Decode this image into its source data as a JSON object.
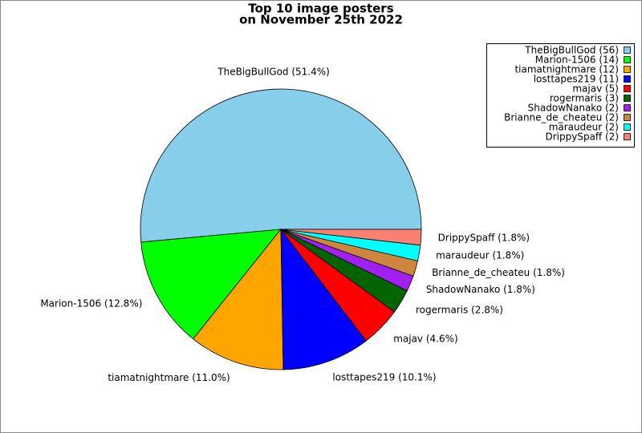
{
  "chart_data": {
    "type": "pie",
    "title": [
      "Top 10 image posters",
      "on November 25th 2022"
    ],
    "values": [
      51.4,
      12.8,
      11.0,
      10.1,
      4.6,
      2.8,
      1.8,
      1.8,
      1.8,
      1.8
    ],
    "value_labels": [
      "TheBigBullGod (51.4%)",
      "Marion-1506 (12.8%)",
      "tiamatnightmare (11.0%)",
      "losttapes219 (10.1%)",
      "majav (4.6%)",
      "rogermaris (2.8%)",
      "ShadowNanako (1.8%)",
      "Brianne_de_cheateu (1.8%)",
      "maraudeur (1.8%)",
      "DrippySpaff (1.8%)"
    ],
    "legend": [
      "TheBigBullGod (56)",
      "Marion-1506 (14)",
      "tiamatnightmare (12)",
      "losttapes219 (11)",
      "majav (5)",
      "rogermaris (3)",
      "ShadowNanako (2)",
      "Brianne_de_cheateu (2)",
      "maraudeur (2)",
      "DrippySpaff (2)"
    ],
    "colors": [
      "#87ceeb",
      "#00ff00",
      "#ffa500",
      "#0000ff",
      "#ff0000",
      "#006400",
      "#a020f0",
      "#cd853f",
      "#00ffff",
      "#fa8072"
    ],
    "legend_position": "upper right"
  }
}
